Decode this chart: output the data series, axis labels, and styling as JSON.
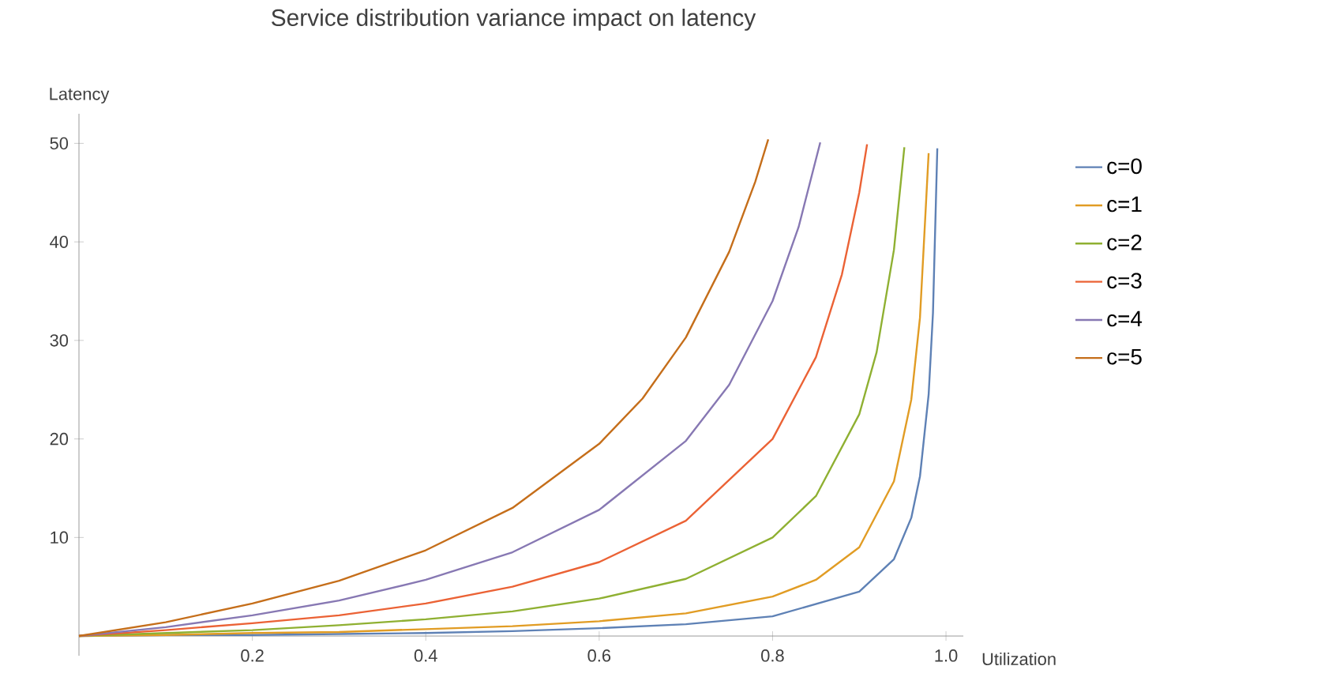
{
  "chart_data": {
    "type": "line",
    "title": "Service distribution variance impact on latency",
    "xlabel": "Utilization",
    "ylabel": "Latency",
    "xlim": [
      0,
      1.02
    ],
    "ylim": [
      -2,
      53
    ],
    "xticks": [
      0.2,
      0.4,
      0.6,
      0.8,
      {
        "value": 1.0,
        "label": "1.0"
      }
    ],
    "yticks": [
      10,
      20,
      30,
      40,
      50
    ],
    "grid": false,
    "legend": "right",
    "marker": "none",
    "line_style": "solid",
    "series": [
      {
        "name": "c=0",
        "color": "#5e81b5",
        "x": [
          0,
          0.1,
          0.2,
          0.3,
          0.4,
          0.5,
          0.6,
          0.7,
          0.8,
          0.9,
          0.94,
          0.96,
          0.97,
          0.98,
          0.985,
          0.99
        ],
        "values": [
          0,
          0.1,
          0.1,
          0.2,
          0.3,
          0.5,
          0.8,
          1.2,
          2,
          4.5,
          7.8,
          12,
          16.2,
          24.5,
          32.8,
          49.5
        ]
      },
      {
        "name": "c=1",
        "color": "#e19c24",
        "x": [
          0,
          0.1,
          0.2,
          0.3,
          0.4,
          0.5,
          0.6,
          0.7,
          0.8,
          0.85,
          0.9,
          0.94,
          0.96,
          0.97,
          0.98
        ],
        "values": [
          0,
          0.1,
          0.3,
          0.4,
          0.7,
          1,
          1.5,
          2.3,
          4,
          5.7,
          9,
          15.7,
          24,
          32.3,
          49
        ]
      },
      {
        "name": "c=2",
        "color": "#8fb032",
        "x": [
          0,
          0.1,
          0.2,
          0.3,
          0.4,
          0.5,
          0.6,
          0.7,
          0.8,
          0.85,
          0.9,
          0.92,
          0.94,
          0.952
        ],
        "values": [
          0,
          0.3,
          0.6,
          1.1,
          1.7,
          2.5,
          3.8,
          5.8,
          10,
          14.2,
          22.5,
          28.8,
          39.2,
          49.6
        ]
      },
      {
        "name": "c=3",
        "color": "#eb6235",
        "x": [
          0,
          0.1,
          0.2,
          0.3,
          0.4,
          0.5,
          0.6,
          0.7,
          0.8,
          0.85,
          0.88,
          0.9,
          0.909
        ],
        "values": [
          0,
          0.6,
          1.3,
          2.1,
          3.3,
          5,
          7.5,
          11.7,
          20,
          28.3,
          36.7,
          45,
          49.9
        ]
      },
      {
        "name": "c=4",
        "color": "#8778b3",
        "x": [
          0,
          0.1,
          0.2,
          0.3,
          0.4,
          0.5,
          0.6,
          0.7,
          0.75,
          0.8,
          0.83,
          0.855
        ],
        "values": [
          0,
          0.9,
          2.1,
          3.6,
          5.7,
          8.5,
          12.8,
          19.8,
          25.5,
          34,
          41.5,
          50.1
        ]
      },
      {
        "name": "c=5",
        "color": "#c56e1a",
        "x": [
          0,
          0.1,
          0.2,
          0.3,
          0.4,
          0.5,
          0.6,
          0.65,
          0.7,
          0.75,
          0.78,
          0.795
        ],
        "values": [
          0,
          1.4,
          3.3,
          5.6,
          8.7,
          13,
          19.5,
          24.1,
          30.3,
          39,
          46.1,
          50.4
        ]
      }
    ]
  }
}
